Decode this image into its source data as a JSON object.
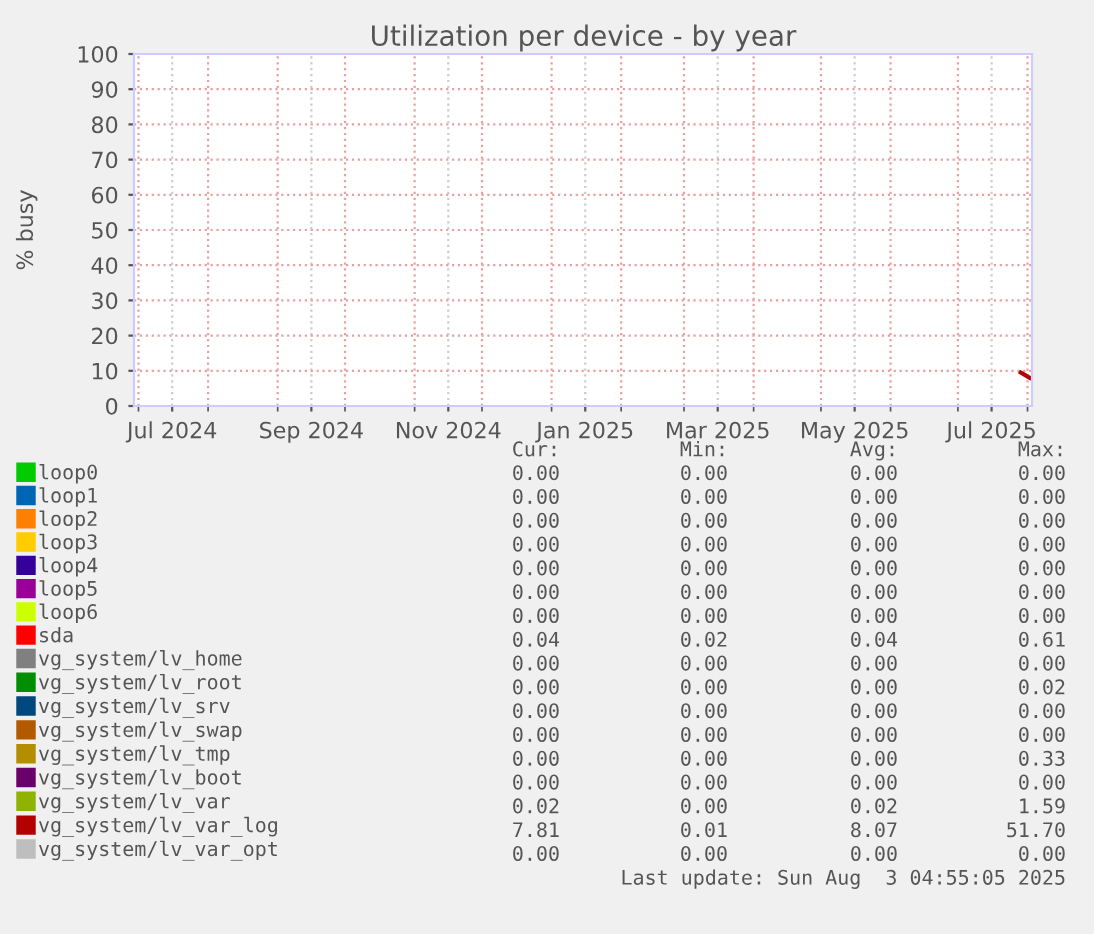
{
  "chart_data": {
    "type": "line",
    "title": "Utilization per device - by year",
    "ylabel": "% busy",
    "xlim": [
      "2024-06-29",
      "2025-08-03"
    ],
    "ylim": [
      0,
      100
    ],
    "xticks": [
      {
        "value": "2024-07-01",
        "label": null
      },
      {
        "value": "2024-07-16",
        "label": "Jul 2024"
      },
      {
        "value": "2024-08-01",
        "label": null
      },
      {
        "value": "2024-09-01",
        "label": null
      },
      {
        "value": "2024-09-16",
        "label": "Sep 2024"
      },
      {
        "value": "2024-10-01",
        "label": null
      },
      {
        "value": "2024-11-01",
        "label": null
      },
      {
        "value": "2024-11-16",
        "label": "Nov 2024"
      },
      {
        "value": "2024-12-01",
        "label": null
      },
      {
        "value": "2025-01-01",
        "label": null
      },
      {
        "value": "2025-01-16",
        "label": "Jan 2025"
      },
      {
        "value": "2025-02-01",
        "label": null
      },
      {
        "value": "2025-03-01",
        "label": null
      },
      {
        "value": "2025-03-16",
        "label": "Mar 2025"
      },
      {
        "value": "2025-04-01",
        "label": null
      },
      {
        "value": "2025-05-01",
        "label": null
      },
      {
        "value": "2025-05-16",
        "label": "May 2025"
      },
      {
        "value": "2025-06-01",
        "label": null
      },
      {
        "value": "2025-07-01",
        "label": null
      },
      {
        "value": "2025-07-16",
        "label": "Jul 2025"
      },
      {
        "value": "2025-08-01",
        "label": null
      }
    ],
    "yticks": [
      0,
      10,
      20,
      30,
      40,
      50,
      60,
      70,
      80,
      90,
      100
    ],
    "grid": true,
    "legend": "bottom",
    "marker": "none",
    "line_style": "solid",
    "series": [
      {
        "name": "loop0",
        "color": "#00cc00"
      },
      {
        "name": "loop1",
        "color": "#0066b3"
      },
      {
        "name": "loop2",
        "color": "#ff8000"
      },
      {
        "name": "loop3",
        "color": "#ffcc00"
      },
      {
        "name": "loop4",
        "color": "#330099"
      },
      {
        "name": "loop5",
        "color": "#990099"
      },
      {
        "name": "loop6",
        "color": "#ccff00"
      },
      {
        "name": "sda",
        "color": "#ff0000"
      },
      {
        "name": "vg_system/lv_home",
        "color": "#808080"
      },
      {
        "name": "vg_system/lv_root",
        "color": "#008f00"
      },
      {
        "name": "vg_system/lv_srv",
        "color": "#00487d"
      },
      {
        "name": "vg_system/lv_swap",
        "color": "#b35a00"
      },
      {
        "name": "vg_system/lv_tmp",
        "color": "#b38f00"
      },
      {
        "name": "vg_system/lv_boot",
        "color": "#6b006b"
      },
      {
        "name": "vg_system/lv_var",
        "color": "#8fb300"
      },
      {
        "name": "vg_system/lv_var_log",
        "color": "#b30000",
        "x": [
          "2025-07-29",
          "2025-08-02"
        ],
        "values": [
          9.5,
          8
        ]
      },
      {
        "name": "vg_system/lv_var_opt",
        "color": "#bebebe"
      }
    ],
    "annotations": [
      "Cur:",
      "Min:",
      "Avg:",
      "Max:",
      "0.00",
      "0.00",
      "0.00",
      "0.00",
      "0.00",
      "0.00",
      "0.00",
      "0.00",
      "0.00",
      "0.00",
      "0.00",
      "0.00",
      "0.00",
      "0.00",
      "0.00",
      "0.00",
      "0.00",
      "0.00",
      "0.00",
      "0.00",
      "0.00",
      "0.00",
      "0.00",
      "0.00",
      "0.00",
      "0.00",
      "0.00",
      "0.00",
      "0.04",
      "0.02",
      "0.04",
      "0.61",
      "0.00",
      "0.00",
      "0.00",
      "0.00",
      "0.00",
      "0.00",
      "0.00",
      "0.02",
      "0.00",
      "0.00",
      "0.00",
      "0.00",
      "0.00",
      "0.00",
      "0.00",
      "0.00",
      "0.00",
      "0.00",
      "0.00",
      "0.33",
      "0.00",
      "0.00",
      "0.00",
      "0.00",
      "0.02",
      "0.00",
      "0.02",
      "1.59",
      "7.81",
      "0.01",
      "8.07",
      "51.70",
      "0.00",
      "0.00",
      "0.00",
      "0.00",
      "Last update: Sun Aug  3 04:55:05 2025"
    ]
  }
}
